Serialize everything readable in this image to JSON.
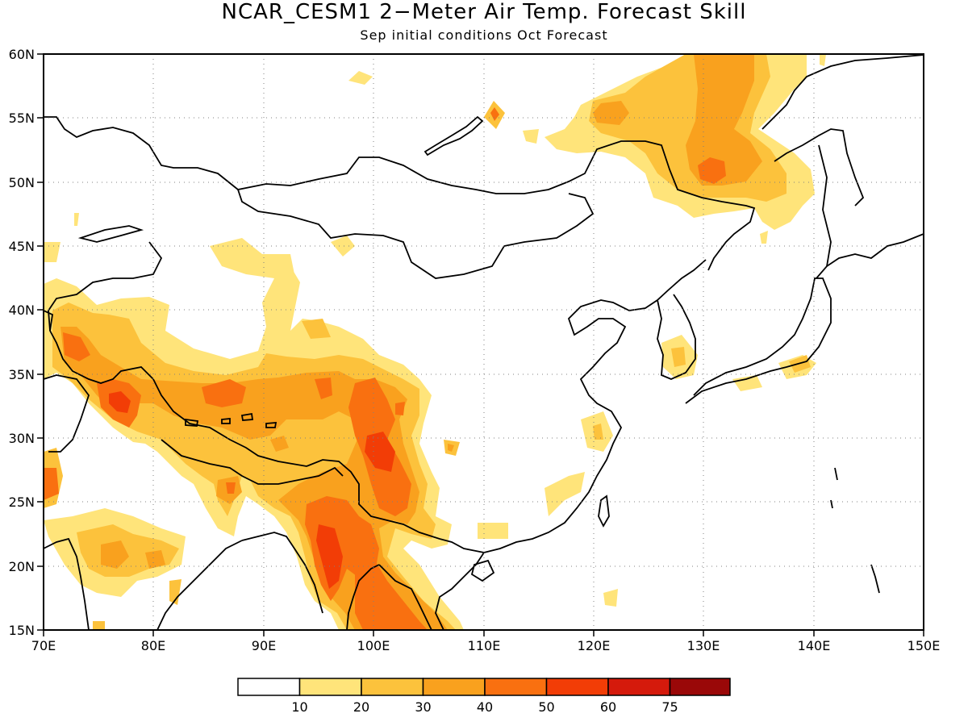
{
  "title": "NCAR_CESM1 2−Meter Air Temp. Forecast Skill",
  "subtitle": "Sep initial conditions  Oct Forecast",
  "map": {
    "lon_min": 70,
    "lon_max": 150,
    "lat_min": 15,
    "lat_max": 60,
    "lon_labels": [
      "70E",
      "80E",
      "90E",
      "100E",
      "110E",
      "120E",
      "130E",
      "140E",
      "150E"
    ],
    "lat_labels": [
      "15N",
      "20N",
      "25N",
      "30N",
      "35N",
      "40N",
      "45N",
      "50N",
      "55N",
      "60N"
    ],
    "grid": "dotted"
  },
  "colorbar": {
    "labels": [
      "10",
      "20",
      "30",
      "40",
      "50",
      "60",
      "75"
    ],
    "colors": [
      "#ffffff",
      "#ffe47a",
      "#fcc23c",
      "#f9a11e",
      "#f97010",
      "#f23d06",
      "#d51a0c",
      "#9a0808"
    ]
  }
}
